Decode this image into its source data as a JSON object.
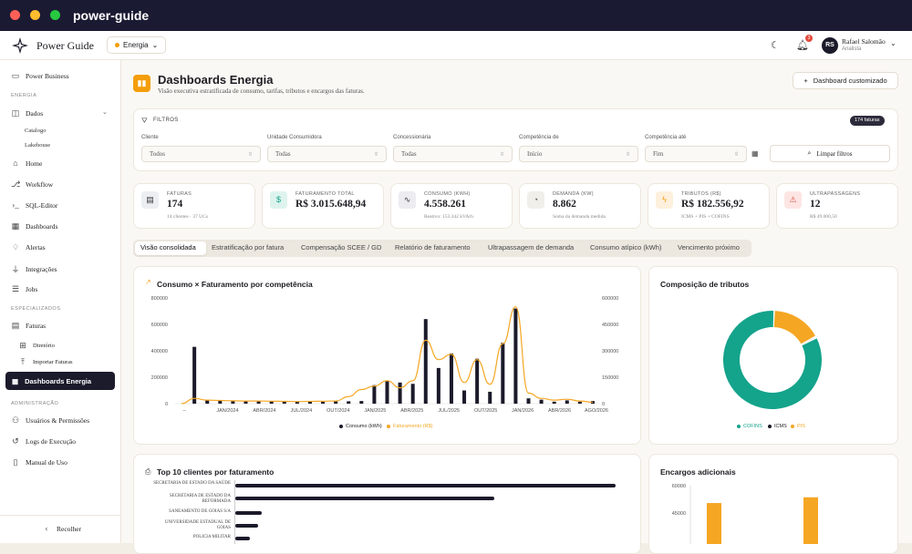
{
  "app": {
    "title": "power-guide",
    "brand": "Power Guide",
    "energy_pill": "Energia"
  },
  "user": {
    "initials": "RS",
    "name": "Rafael Salomão",
    "role": "Analista",
    "notifications": "3"
  },
  "sidebar": {
    "top": "Power Business",
    "sec_energia": "ENERGIA",
    "dados": "Dados",
    "catalogo": "Catalogo",
    "lakehouse": "Lakehouse",
    "home": "Home",
    "workflow": "Workflow",
    "sql": "SQL-Editor",
    "dashboards": "Dashboards",
    "alertas": "Alertas",
    "integracoes": "Integrações",
    "jobs": "Jobs",
    "sec_esp": "ESPECIALIZADOS",
    "faturas": "Faturas",
    "diretorio": "Diretório",
    "importar": "Importar Faturas",
    "dash_energia": "Dashboards Energia",
    "sec_admin": "ADMINISTRAÇÃO",
    "usuarios": "Usuários & Permissões",
    "logs": "Logs de Execução",
    "manual": "Manual de Uso",
    "recolher": "Recolher"
  },
  "header": {
    "title": "Dashboards Energia",
    "subtitle": "Visão executiva estratificada de consumo, tarifas, tributos e encargos das faturas.",
    "custom_btn": "Dashboard customizado"
  },
  "filters": {
    "title": "FILTROS",
    "count": "174 faturas",
    "cliente_label": "Cliente",
    "cliente_val": "Todos",
    "uc_label": "Unidade Consumidora",
    "uc_val": "Todas",
    "conc_label": "Concessionária",
    "conc_val": "Todas",
    "comp_de_label": "Competência de",
    "comp_de_val": "Início",
    "comp_ate_label": "Competência até",
    "comp_ate_val": "Fim",
    "clear": "Limpar filtros"
  },
  "kpis": [
    {
      "label": "FATURAS",
      "value": "174",
      "sub": "14 clientes · 37 UCs"
    },
    {
      "label": "FATURAMENTO TOTAL",
      "value": "R$ 3.015.648,94",
      "sub": ""
    },
    {
      "label": "CONSUMO (KWH)",
      "value": "4.558.261",
      "sub": "Reativo: 153.342 kVArh"
    },
    {
      "label": "DEMANDA (KW)",
      "value": "8.862",
      "sub": "Soma da demanda medida"
    },
    {
      "label": "TRIBUTOS (R$)",
      "value": "R$ 182.556,92",
      "sub": "ICMS + PIS + COFINS"
    },
    {
      "label": "ULTRAPASSAGENS",
      "value": "12",
      "sub": "R$ 49.000,50"
    }
  ],
  "tabs": [
    "Visão consolidada",
    "Estratificação por fatura",
    "Compensação SCEE / GD",
    "Relatório de faturamento",
    "Ultrapassagem de demanda",
    "Consumo atípico (kWh)",
    "Vencimento próximo"
  ],
  "chart_titles": {
    "main": "Consumo × Faturamento por competência",
    "donut": "Composição de tributos",
    "top10": "Top 10 clientes por faturamento",
    "encargos": "Encargos adicionais"
  },
  "chart_data": [
    {
      "type": "bar",
      "title": "Consumo × Faturamento por competência",
      "y_left_ticks": [
        "0",
        "200000",
        "400000",
        "600000",
        "800000"
      ],
      "ylim_left": [
        0,
        800000
      ],
      "y_right_ticks": [
        "0",
        "150000",
        "300000",
        "450000",
        "600000"
      ],
      "ylim_right": [
        0,
        600000
      ],
      "x_tick_labels": [
        "–",
        "JAN/2024",
        "ABR/2024",
        "JUL/2024",
        "OUT/2024",
        "JAN/2025",
        "ABR/2025",
        "JUL/2025",
        "OUT/2025",
        "JAN/2026",
        "ABR/2026",
        "AGO/2026"
      ],
      "series": [
        {
          "name": "Consumo (kWh)",
          "type": "bar",
          "values": [
            0,
            430000,
            25000,
            22000,
            20000,
            20000,
            18000,
            17000,
            15000,
            15000,
            15000,
            15000,
            20000,
            18000,
            20000,
            140000,
            170000,
            160000,
            150000,
            640000,
            270000,
            380000,
            100000,
            340000,
            90000,
            460000,
            720000,
            40000,
            30000,
            15000,
            25000,
            15000,
            20000
          ]
        },
        {
          "name": "Faturamento (R$)",
          "type": "line",
          "values": [
            0,
            30000,
            20000,
            18000,
            16000,
            15000,
            15000,
            14000,
            13000,
            12000,
            13000,
            14000,
            15000,
            40000,
            80000,
            100000,
            130000,
            90000,
            130000,
            360000,
            250000,
            280000,
            120000,
            250000,
            110000,
            340000,
            550000,
            60000,
            30000,
            20000,
            25000,
            15000,
            8000
          ]
        }
      ]
    },
    {
      "type": "pie",
      "title": "Composição de tributos",
      "categories": [
        "COFINS",
        "ICMS",
        "PIS"
      ],
      "values": [
        83,
        0.5,
        16.5
      ]
    },
    {
      "type": "bar",
      "title": "Top 10 clientes por faturamento",
      "categories": [
        "SECRETARIA DE ESTADO DA SAÚDE",
        "SECRETARIA DE ESTADO DA REFORMADA",
        "SANEAMENTO DE GOIAS S/A",
        "UNIVERSIDADE ESTADUAL DE GOIAS",
        "POLICIA MILITAR"
      ],
      "values": [
        1000000,
        680000,
        70000,
        60000,
        38000
      ]
    },
    {
      "type": "bar",
      "title": "Encargos adicionais",
      "y_ticks": [
        "60000",
        "45000"
      ],
      "values": [
        43000,
        49000
      ]
    }
  ],
  "colors": {
    "bar": "#1b1a2a",
    "line": "#f5a623",
    "cofins": "#14a38b",
    "icms": "#1b1a2a",
    "pis": "#f5a623"
  }
}
